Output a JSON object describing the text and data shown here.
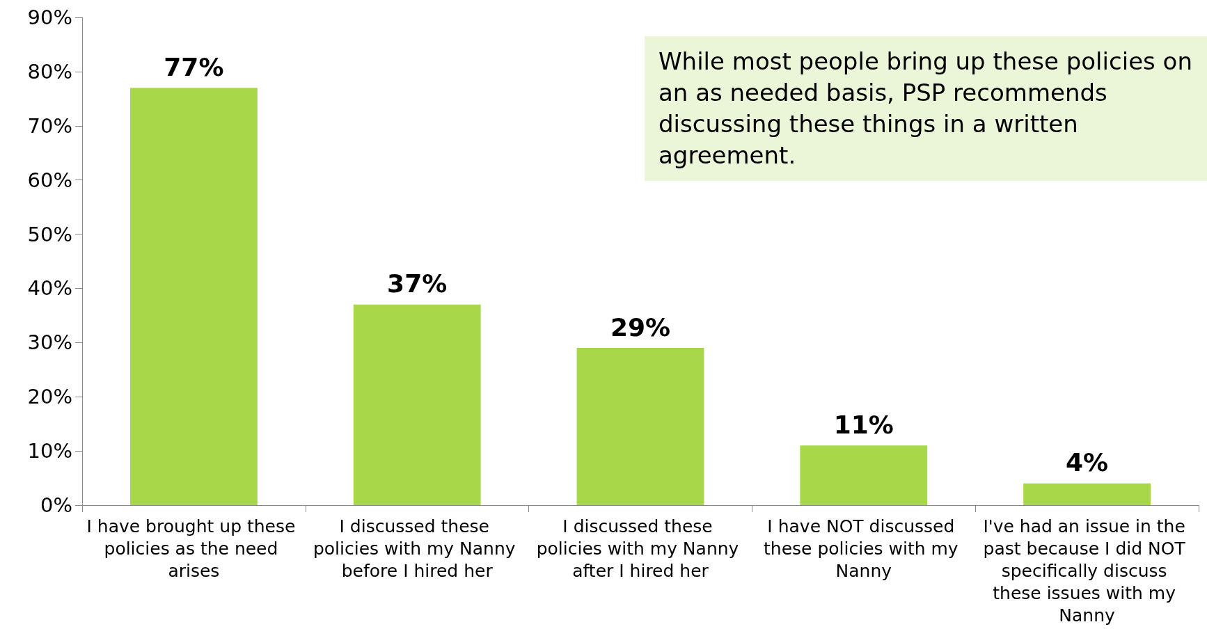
{
  "chart_data": {
    "type": "bar",
    "categories": [
      "I have brought up these policies as the need arises",
      "I discussed these policies with my Nanny before I hired her",
      "I discussed these policies with my Nanny after I hired her",
      "I have NOT discussed these policies with my Nanny",
      "I've had an issue in the past because I did NOT specifically discuss these issues with my Nanny"
    ],
    "values": [
      77,
      37,
      29,
      11,
      4
    ],
    "value_labels": [
      "77%",
      "37%",
      "29%",
      "11%",
      "4%"
    ],
    "color": "#a8d84a",
    "ylim": [
      0,
      90
    ],
    "yticks": [
      {
        "value": 0,
        "label": "0%"
      },
      {
        "value": 10,
        "label": "10%"
      },
      {
        "value": 20,
        "label": "20%"
      },
      {
        "value": 30,
        "label": "30%"
      },
      {
        "value": 40,
        "label": "40%"
      },
      {
        "value": 50,
        "label": "50%"
      },
      {
        "value": 60,
        "label": "60%"
      },
      {
        "value": 70,
        "label": "70%"
      },
      {
        "value": 80,
        "label": "80%"
      },
      {
        "value": 90,
        "label": "90%"
      }
    ],
    "grid": false,
    "annotations": [
      "While most people bring up these policies on an as needed basis, PSP recommends discussing these things in a written agreement."
    ]
  }
}
